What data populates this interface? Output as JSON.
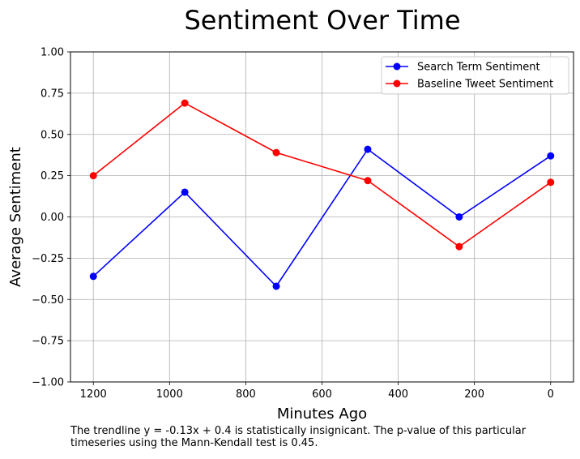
{
  "chart_data": {
    "type": "line",
    "title": "Sentiment Over Time",
    "xlabel": "Minutes Ago",
    "ylabel": "Average Sentiment",
    "xlim": [
      1260,
      -60
    ],
    "ylim": [
      -1.0,
      1.0
    ],
    "x_inverted": true,
    "xticks": [
      1200,
      1000,
      800,
      600,
      400,
      200,
      0
    ],
    "yticks": [
      -1.0,
      -0.75,
      -0.5,
      -0.25,
      0.0,
      0.25,
      0.5,
      0.75,
      1.0
    ],
    "ytick_labels": [
      "−1.00",
      "−0.75",
      "−0.50",
      "−0.25",
      "0.00",
      "0.25",
      "0.50",
      "0.75",
      "1.00"
    ],
    "grid": true,
    "legend_placement": "top-right",
    "x": [
      1200,
      960,
      720,
      480,
      240,
      0
    ],
    "series": [
      {
        "name": "Search Term Sentiment",
        "color": "#0000ff",
        "values": [
          -0.36,
          0.15,
          -0.42,
          0.41,
          0.0,
          0.37
        ]
      },
      {
        "name": "Baseline Tweet Sentiment",
        "color": "#ff0000",
        "values": [
          0.25,
          0.69,
          0.39,
          0.22,
          -0.18,
          0.21
        ]
      }
    ]
  },
  "caption": "The trendline y = -0.13x + 0.4 is statistically insignicant. The p-value of this particular timeseries using the Mann-Kendall test is 0.45."
}
